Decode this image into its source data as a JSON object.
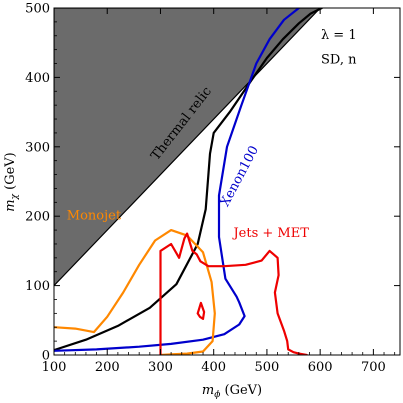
{
  "chart_data": {
    "type": "line",
    "xlabel": "m_ϕ (GeV)",
    "ylabel": "m_χ (GeV)",
    "xlim": [
      100,
      750
    ],
    "ylim": [
      0,
      500
    ],
    "x_ticks": [
      100,
      200,
      300,
      400,
      500,
      600,
      700
    ],
    "y_ticks": [
      0,
      100,
      200,
      300,
      400,
      500
    ],
    "grid": false,
    "legend": "none",
    "excluded_region": {
      "fill": "#6b6b6b",
      "boundary_x": [
        100,
        600
      ],
      "boundary_y": [
        100,
        500
      ]
    },
    "series": [
      {
        "name": "Thermal relic",
        "color": "#000000",
        "x": [
          100,
          160,
          220,
          280,
          330,
          370,
          385,
          390,
          393,
          400,
          430,
          470,
          500,
          530,
          560,
          582,
          603
        ],
        "y": [
          7,
          22,
          42,
          68,
          102,
          160,
          210,
          260,
          290,
          320,
          350,
          395,
          428,
          455,
          478,
          492,
          500
        ]
      },
      {
        "name": "Xenon100",
        "color": "#0000cc",
        "x": [
          100,
          180,
          260,
          320,
          380,
          420,
          448,
          458,
          448,
          443,
          422,
          410,
          410,
          425,
          452,
          480,
          505,
          532,
          560
        ],
        "y": [
          6,
          8,
          12,
          16,
          22,
          30,
          44,
          56,
          76,
          84,
          110,
          170,
          230,
          300,
          360,
          420,
          455,
          483,
          500
        ]
      },
      {
        "name": "Monojet",
        "color": "#ff8800",
        "x": [
          100,
          140,
          175,
          200,
          230,
          260,
          290,
          320,
          350,
          380,
          396,
          402,
          398,
          380,
          350,
          320,
          300
        ],
        "y": [
          40,
          38,
          33,
          55,
          90,
          130,
          165,
          180,
          172,
          148,
          105,
          60,
          20,
          5,
          2,
          1,
          0
        ]
      },
      {
        "name": "Jets + MET",
        "color": "#ee0000",
        "x": [
          300,
          300,
          320,
          335,
          345,
          350,
          360,
          368,
          375,
          390,
          420,
          460,
          490,
          505,
          520,
          522,
          515,
          520,
          532,
          538,
          540,
          550,
          560,
          575
        ],
        "y": [
          0,
          150,
          160,
          140,
          168,
          175,
          150,
          145,
          135,
          128,
          128,
          130,
          136,
          150,
          140,
          115,
          90,
          60,
          35,
          20,
          8,
          4,
          2,
          0
        ]
      },
      {
        "name": "Jets + MET island",
        "color": "#ee0000",
        "x": [
          370,
          376,
          382,
          380,
          374,
          370
        ],
        "y": [
          60,
          75,
          62,
          52,
          55,
          60
        ]
      }
    ],
    "annotations": [
      {
        "text": "Thermal relic",
        "x": 345,
        "y": 330,
        "angle": -52,
        "color": "#000000"
      },
      {
        "text": "Xenon100",
        "x": 455,
        "y": 255,
        "angle": -62,
        "color": "#0000cc"
      },
      {
        "text": "Monojet",
        "x": 175,
        "y": 195,
        "angle": 0,
        "color": "#ff8800"
      },
      {
        "text": "Jets + MET",
        "x": 508,
        "y": 170,
        "angle": 0,
        "color": "#ee0000"
      },
      {
        "text": "λ = 1",
        "x": 635,
        "y": 455,
        "angle": 0,
        "color": "#000000"
      },
      {
        "text": "SD, n",
        "x": 635,
        "y": 420,
        "angle": 0,
        "color": "#000000"
      }
    ]
  }
}
